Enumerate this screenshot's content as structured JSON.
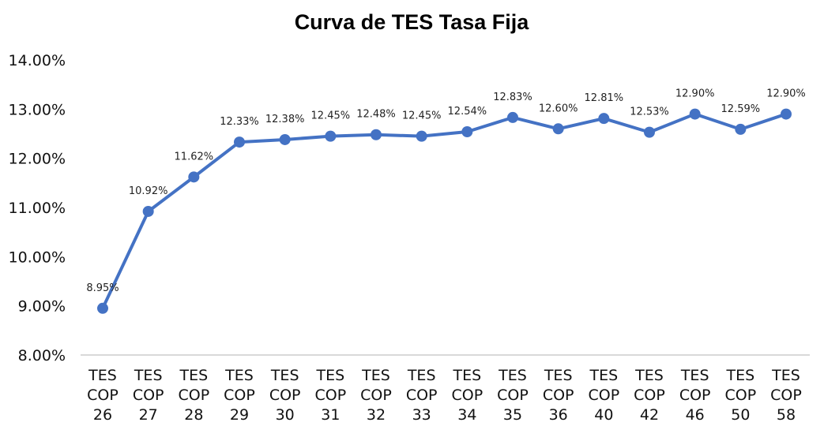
{
  "chart_data": {
    "type": "line",
    "title": "Curva de TES Tasa Fija",
    "xlabel": "",
    "ylabel": "",
    "categories": [
      [
        "TES",
        "COP",
        "26"
      ],
      [
        "TES",
        "COP",
        "27"
      ],
      [
        "TES",
        "COP",
        "28"
      ],
      [
        "TES",
        "COP",
        "29"
      ],
      [
        "TES",
        "COP",
        "30"
      ],
      [
        "TES",
        "COP",
        "31"
      ],
      [
        "TES",
        "COP",
        "32"
      ],
      [
        "TES",
        "COP",
        "33"
      ],
      [
        "TES",
        "COP",
        "34"
      ],
      [
        "TES",
        "COP",
        "35"
      ],
      [
        "TES",
        "COP",
        "36"
      ],
      [
        "TES",
        "COP",
        "40"
      ],
      [
        "TES",
        "COP",
        "42"
      ],
      [
        "TES",
        "COP",
        "46"
      ],
      [
        "TES",
        "COP",
        "50"
      ],
      [
        "TES",
        "COP",
        "58"
      ]
    ],
    "series": [
      {
        "name": "TES Tasa Fija",
        "color": "#4472C4",
        "values": [
          8.95,
          10.92,
          11.62,
          12.33,
          12.38,
          12.45,
          12.48,
          12.45,
          12.54,
          12.83,
          12.6,
          12.81,
          12.53,
          12.9,
          12.59,
          12.9
        ],
        "labels": [
          "8.95%",
          "10.92%",
          "11.62%",
          "12.33%",
          "12.38%",
          "12.45%",
          "12.48%",
          "12.45%",
          "12.54%",
          "12.83%",
          "12.60%",
          "12.81%",
          "12.53%",
          "12.90%",
          "12.59%",
          "12.90%"
        ]
      }
    ],
    "ylim": [
      8,
      14
    ],
    "yticks": [
      8,
      9,
      10,
      11,
      12,
      13,
      14
    ],
    "ytick_labels": [
      "8.00%",
      "9.00%",
      "10.00%",
      "11.00%",
      "12.00%",
      "13.00%",
      "14.00%"
    ],
    "grid": false,
    "legend": "none"
  }
}
